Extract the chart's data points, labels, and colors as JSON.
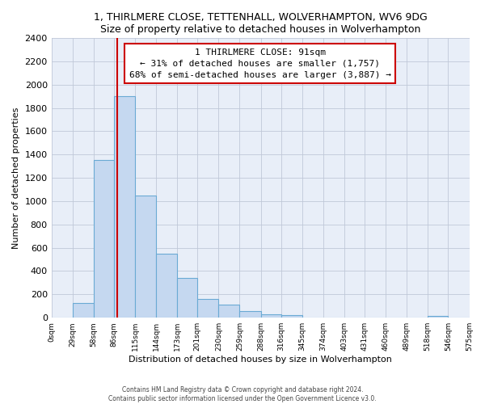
{
  "title": "1, THIRLMERE CLOSE, TETTENHALL, WOLVERHAMPTON, WV6 9DG",
  "subtitle": "Size of property relative to detached houses in Wolverhampton",
  "xlabel": "Distribution of detached houses by size in Wolverhampton",
  "ylabel": "Number of detached properties",
  "bar_edges": [
    0,
    29,
    58,
    86,
    115,
    144,
    173,
    201,
    230,
    259,
    288,
    316,
    345,
    374,
    403,
    431,
    460,
    489,
    518,
    546,
    575
  ],
  "bar_heights": [
    0,
    125,
    1350,
    1900,
    1050,
    550,
    340,
    160,
    110,
    60,
    30,
    20,
    0,
    0,
    0,
    0,
    0,
    0,
    15,
    0,
    0
  ],
  "bar_color": "#c5d8f0",
  "bar_edge_color": "#6aaad4",
  "property_size": 91,
  "property_line_color": "#cc0000",
  "annotation_line1": "1 THIRLMERE CLOSE: 91sqm",
  "annotation_line2": "← 31% of detached houses are smaller (1,757)",
  "annotation_line3": "68% of semi-detached houses are larger (3,887) →",
  "annotation_box_color": "#ffffff",
  "annotation_box_edge": "#cc0000",
  "tick_labels": [
    "0sqm",
    "29sqm",
    "58sqm",
    "86sqm",
    "115sqm",
    "144sqm",
    "173sqm",
    "201sqm",
    "230sqm",
    "259sqm",
    "288sqm",
    "316sqm",
    "345sqm",
    "374sqm",
    "403sqm",
    "431sqm",
    "460sqm",
    "489sqm",
    "518sqm",
    "546sqm",
    "575sqm"
  ],
  "ylim": [
    0,
    2400
  ],
  "yticks": [
    0,
    200,
    400,
    600,
    800,
    1000,
    1200,
    1400,
    1600,
    1800,
    2000,
    2200,
    2400
  ],
  "footer1": "Contains HM Land Registry data © Crown copyright and database right 2024.",
  "footer2": "Contains public sector information licensed under the Open Government Licence v3.0.",
  "bg_color": "#e8eef8"
}
